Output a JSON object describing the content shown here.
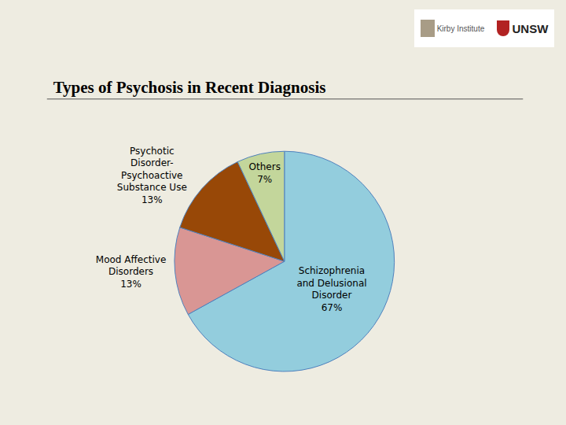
{
  "logos": [
    "Kirby Institute",
    "UNSW"
  ],
  "chart_data": {
    "type": "pie",
    "title": "Types of Psychosis in Recent Diagnosis",
    "categories": [
      "Schizophrenia and Delusional Disorder",
      "Mood Affective Disorders",
      "Psychotic Disorder-Psychoactive Substance Use",
      "Others"
    ],
    "values": [
      67,
      13,
      13,
      7
    ],
    "value_labels": [
      "67%",
      "13%",
      "13%",
      "7%"
    ],
    "colors": [
      "#93cddd",
      "#d99694",
      "#984807",
      "#c3d69b"
    ],
    "data_labels": true
  }
}
